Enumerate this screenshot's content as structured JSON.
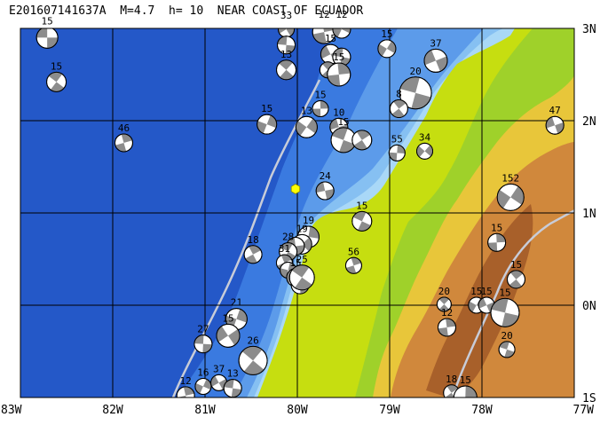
{
  "title": "E201607141637A  M=4.7  h= 10  NEAR COAST OF ECUADOR",
  "map": {
    "lon_range": [
      -83,
      -77
    ],
    "lat_range": [
      -1,
      3
    ],
    "lon_ticks": [
      {
        "value": -83,
        "label": "83W"
      },
      {
        "value": -82,
        "label": "82W"
      },
      {
        "value": -81,
        "label": "81W"
      },
      {
        "value": -80,
        "label": "80W"
      },
      {
        "value": -79,
        "label": "79W"
      },
      {
        "value": -78,
        "label": "78W"
      },
      {
        "value": -77,
        "label": "77W"
      }
    ],
    "lat_ticks": [
      {
        "value": 3,
        "label": "3N"
      },
      {
        "value": 2,
        "label": "2N"
      },
      {
        "value": 1,
        "label": "1N"
      },
      {
        "value": 0,
        "label": "0N"
      },
      {
        "value": -1,
        "label": "1S"
      }
    ],
    "epicenter": {
      "lon": -80.02,
      "lat": 1.26,
      "color": "#ffff00"
    },
    "colors": {
      "deep_ocean": "#2458c8",
      "mid_ocean": "#3a7ae0",
      "shelf": "#6aaef0",
      "coast": "#9bd0f5",
      "lowland": "#c6de10",
      "hills": "#e8c63a",
      "mountains": "#d0883c",
      "peaks": "#a8602a",
      "trench_line": "#c8ccd8"
    },
    "events": [
      {
        "lon": -82.71,
        "lat": 2.9,
        "depth": "15",
        "size": 12
      },
      {
        "lon": -82.61,
        "lat": 2.42,
        "depth": "15",
        "size": 11
      },
      {
        "lon": -81.88,
        "lat": 1.76,
        "depth": "46",
        "size": 10
      },
      {
        "lon": -80.33,
        "lat": 1.96,
        "depth": "15",
        "size": 11
      },
      {
        "lon": -80.12,
        "lat": 2.99,
        "depth": "33",
        "size": 9
      },
      {
        "lon": -80.12,
        "lat": 2.82,
        "depth": "",
        "size": 10
      },
      {
        "lon": -80.12,
        "lat": 2.55,
        "depth": "13",
        "size": 11
      },
      {
        "lon": -79.71,
        "lat": 2.96,
        "depth": "12",
        "size": 13
      },
      {
        "lon": -79.52,
        "lat": 2.99,
        "depth": "12",
        "size": 10
      },
      {
        "lon": -79.64,
        "lat": 2.72,
        "depth": "15",
        "size": 11
      },
      {
        "lon": -79.52,
        "lat": 2.69,
        "depth": "",
        "size": 10
      },
      {
        "lon": -79.67,
        "lat": 2.55,
        "depth": "",
        "size": 9
      },
      {
        "lon": -79.55,
        "lat": 2.5,
        "depth": "15",
        "size": 13
      },
      {
        "lon": -79.03,
        "lat": 2.78,
        "depth": "15",
        "size": 10
      },
      {
        "lon": -78.5,
        "lat": 2.65,
        "depth": "37",
        "size": 13
      },
      {
        "lon": -78.72,
        "lat": 2.3,
        "depth": "20",
        "size": 18
      },
      {
        "lon": -78.9,
        "lat": 2.13,
        "depth": "8",
        "size": 10
      },
      {
        "lon": -79.75,
        "lat": 2.13,
        "depth": "15",
        "size": 9
      },
      {
        "lon": -79.9,
        "lat": 1.93,
        "depth": "13",
        "size": 12
      },
      {
        "lon": -79.55,
        "lat": 1.93,
        "depth": "10",
        "size": 10
      },
      {
        "lon": -79.5,
        "lat": 1.79,
        "depth": "15",
        "size": 14
      },
      {
        "lon": -79.3,
        "lat": 1.79,
        "depth": "",
        "size": 11
      },
      {
        "lon": -78.92,
        "lat": 1.65,
        "depth": "55",
        "size": 9
      },
      {
        "lon": -78.62,
        "lat": 1.67,
        "depth": "34",
        "size": 9
      },
      {
        "lon": -79.7,
        "lat": 1.24,
        "depth": "24",
        "size": 10
      },
      {
        "lon": -79.3,
        "lat": 0.91,
        "depth": "15",
        "size": 11
      },
      {
        "lon": -80.48,
        "lat": 0.55,
        "depth": "18",
        "size": 10
      },
      {
        "lon": -79.88,
        "lat": 0.74,
        "depth": "19",
        "size": 12
      },
      {
        "lon": -79.95,
        "lat": 0.66,
        "depth": "19",
        "size": 11
      },
      {
        "lon": -80.02,
        "lat": 0.64,
        "depth": "",
        "size": 10
      },
      {
        "lon": -80.1,
        "lat": 0.58,
        "depth": "28",
        "size": 10
      },
      {
        "lon": -80.14,
        "lat": 0.46,
        "depth": "31",
        "size": 9
      },
      {
        "lon": -80.1,
        "lat": 0.38,
        "depth": "",
        "size": 9
      },
      {
        "lon": -80.02,
        "lat": 0.3,
        "depth": "15",
        "size": 10
      },
      {
        "lon": -79.97,
        "lat": 0.22,
        "depth": "",
        "size": 10
      },
      {
        "lon": -79.95,
        "lat": 0.3,
        "depth": "25",
        "size": 14
      },
      {
        "lon": -79.39,
        "lat": 0.43,
        "depth": "56",
        "size": 9
      },
      {
        "lon": -80.66,
        "lat": -0.15,
        "depth": "21",
        "size": 12
      },
      {
        "lon": -80.75,
        "lat": -0.33,
        "depth": "15",
        "size": 13
      },
      {
        "lon": -81.02,
        "lat": -0.42,
        "depth": "27",
        "size": 10
      },
      {
        "lon": -80.48,
        "lat": -0.6,
        "depth": "26",
        "size": 16
      },
      {
        "lon": -81.21,
        "lat": -0.98,
        "depth": "12",
        "size": 10
      },
      {
        "lon": -81.02,
        "lat": -0.88,
        "depth": "16",
        "size": 9
      },
      {
        "lon": -80.85,
        "lat": -0.84,
        "depth": "37",
        "size": 9
      },
      {
        "lon": -80.7,
        "lat": -0.9,
        "depth": "13",
        "size": 10
      },
      {
        "lon": -78.41,
        "lat": 0.01,
        "depth": "20",
        "size": 8
      },
      {
        "lon": -78.38,
        "lat": -0.24,
        "depth": "12",
        "size": 10
      },
      {
        "lon": -78.06,
        "lat": 0.0,
        "depth": "15",
        "size": 9
      },
      {
        "lon": -77.95,
        "lat": 0.0,
        "depth": "15",
        "size": 9
      },
      {
        "lon": -77.75,
        "lat": -0.08,
        "depth": "15",
        "size": 16
      },
      {
        "lon": -77.63,
        "lat": 0.28,
        "depth": "15",
        "size": 10
      },
      {
        "lon": -77.84,
        "lat": 0.68,
        "depth": "15",
        "size": 10
      },
      {
        "lon": -77.69,
        "lat": 1.17,
        "depth": "152",
        "size": 15
      },
      {
        "lon": -77.21,
        "lat": 1.95,
        "depth": "47",
        "size": 10
      },
      {
        "lon": -77.73,
        "lat": -0.48,
        "depth": "20",
        "size": 9
      },
      {
        "lon": -78.33,
        "lat": -0.95,
        "depth": "18",
        "size": 9
      },
      {
        "lon": -78.18,
        "lat": -1.0,
        "depth": "15",
        "size": 13
      }
    ]
  }
}
